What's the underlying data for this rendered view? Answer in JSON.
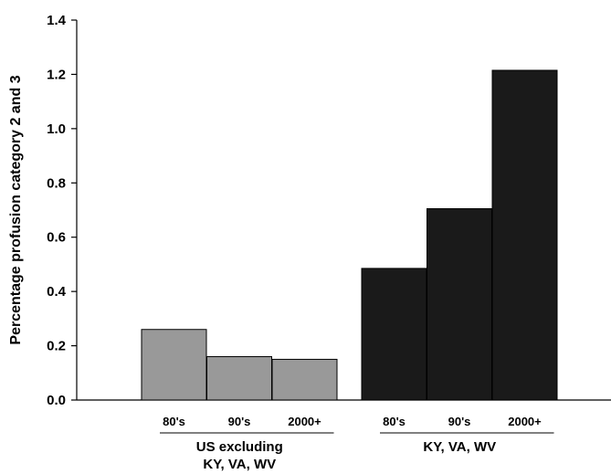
{
  "chart_data": {
    "type": "bar",
    "ylabel": "Percentage profusion category 2 and 3",
    "ylim": [
      0,
      1.4
    ],
    "yticks": [
      "0.0",
      "0.2",
      "0.4",
      "0.6",
      "0.8",
      "1.0",
      "1.2",
      "1.4"
    ],
    "grid": false,
    "groups": [
      {
        "label_lines": [
          "US excluding",
          "KY, VA, WV"
        ],
        "color": "#999999",
        "categories": [
          "80's",
          "90's",
          "2000+"
        ],
        "values": [
          0.26,
          0.16,
          0.15
        ]
      },
      {
        "label_lines": [
          "KY, VA, WV"
        ],
        "color": "#1a1a1a",
        "categories": [
          "80's",
          "90's",
          "2000+"
        ],
        "values": [
          0.485,
          0.705,
          1.215
        ]
      }
    ]
  }
}
